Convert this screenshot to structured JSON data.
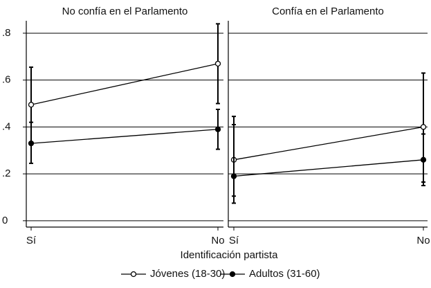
{
  "chart_data": [
    {
      "type": "line",
      "title": "No confía en el Parlamento",
      "categories": [
        "Sí",
        "No"
      ],
      "ylim": [
        -0.027,
        0.853
      ],
      "yticks": [
        0,
        {
          "value": 0.2,
          "label": ".2"
        },
        {
          "value": 0.4,
          "label": ".4"
        },
        {
          "value": 0.6,
          "label": ".6"
        },
        {
          "value": 0.8,
          "label": ".8"
        }
      ],
      "grid": true,
      "series": [
        {
          "name": "Jóvenes (18-30)",
          "color": "#000000",
          "marker": "hollow",
          "values": [
            0.495,
            0.67
          ],
          "ci_low": [
            0.335,
            0.5
          ],
          "ci_high": [
            0.655,
            0.84
          ]
        },
        {
          "name": "Adultos (31-60)",
          "color": "#000000",
          "marker": "filled",
          "values": [
            0.33,
            0.39
          ],
          "ci_low": [
            0.245,
            0.305
          ],
          "ci_high": [
            0.42,
            0.475
          ]
        }
      ]
    },
    {
      "type": "line",
      "title": "Confía en el Parlamento",
      "categories": [
        "Sí",
        "No"
      ],
      "ylim": [
        -0.027,
        0.853
      ],
      "yticks": [
        0,
        {
          "value": 0.2,
          "label": ".2"
        },
        {
          "value": 0.4,
          "label": ".4"
        },
        {
          "value": 0.6,
          "label": ".6"
        },
        {
          "value": 0.8,
          "label": ".8"
        }
      ],
      "grid": true,
      "series": [
        {
          "name": "Jóvenes (18-30)",
          "color": "#000000",
          "marker": "hollow",
          "values": [
            0.26,
            0.4
          ],
          "ci_low": [
            0.075,
            0.165
          ],
          "ci_high": [
            0.445,
            0.63
          ]
        },
        {
          "name": "Adultos (31-60)",
          "color": "#000000",
          "marker": "filled",
          "values": [
            0.19,
            0.26
          ],
          "ci_low": [
            0.105,
            0.15
          ],
          "ci_high": [
            0.41,
            0.37
          ]
        }
      ]
    }
  ],
  "x_label": "Identificación partista"
}
